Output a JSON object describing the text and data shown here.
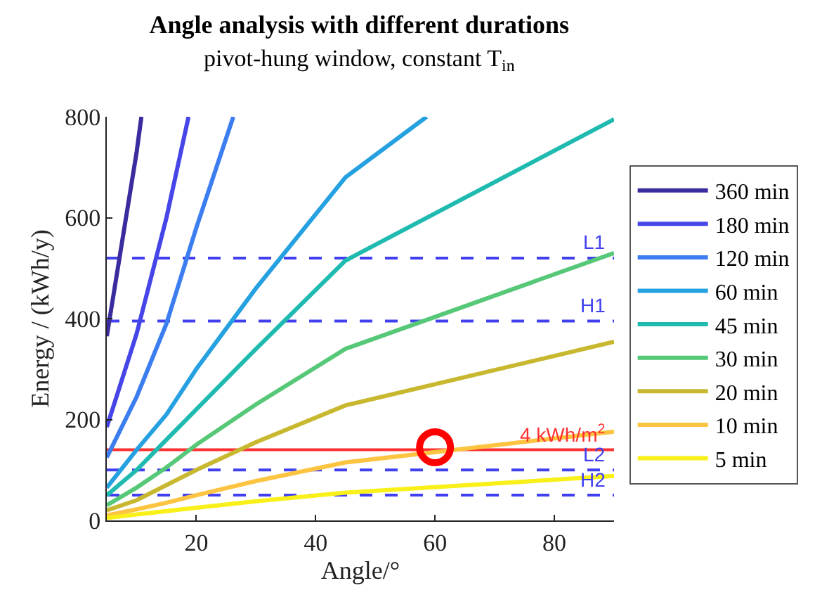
{
  "chart_data": {
    "type": "line",
    "title": "Angle analysis with different durations",
    "subtitle": "pivot-hung window, constant T$_{in}$",
    "xlabel": "Angle/°",
    "ylabel": "Energy / (kWh/y)",
    "xlim": [
      5,
      90
    ],
    "xticks": [
      20,
      40,
      60,
      80
    ],
    "ylim": [
      0,
      800
    ],
    "yticks": [
      0,
      200,
      400,
      600,
      800
    ],
    "grid": false,
    "legend": "right",
    "marker": "none",
    "line_style": "solid",
    "series": [
      {
        "name": "360 min",
        "color": "#3a2c9e",
        "x": [
          5,
          10,
          10.8
        ],
        "values": [
          365,
          730,
          800
        ]
      },
      {
        "name": "180 min",
        "color": "#4646e8",
        "x": [
          5,
          10,
          15,
          18.7
        ],
        "values": [
          185,
          370,
          600,
          800
        ]
      },
      {
        "name": "120 min",
        "color": "#3c7ef0",
        "x": [
          5,
          10,
          15,
          20,
          26.2
        ],
        "values": [
          125,
          245,
          390,
          580,
          800
        ]
      },
      {
        "name": "60 min",
        "color": "#25a0e0",
        "x": [
          5,
          10,
          15,
          20,
          30,
          45,
          58.6
        ],
        "values": [
          65,
          140,
          210,
          300,
          460,
          680,
          800
        ]
      },
      {
        "name": "45 min",
        "color": "#1fbab0",
        "x": [
          5,
          10,
          15,
          20,
          30,
          45,
          90
        ],
        "values": [
          50,
          100,
          160,
          220,
          340,
          515,
          795
        ]
      },
      {
        "name": "30 min",
        "color": "#56c878",
        "x": [
          5,
          10,
          15,
          20,
          30,
          45,
          90
        ],
        "values": [
          30,
          65,
          105,
          150,
          230,
          340,
          530
        ]
      },
      {
        "name": "20 min",
        "color": "#c8b830",
        "x": [
          5,
          10,
          15,
          20,
          30,
          45,
          90
        ],
        "values": [
          20,
          40,
          70,
          100,
          155,
          228,
          354
        ]
      },
      {
        "name": "10 min",
        "color": "#fcc440",
        "x": [
          5,
          10,
          15,
          20,
          30,
          45,
          90
        ],
        "values": [
          10,
          22,
          35,
          50,
          78,
          115,
          176
        ]
      },
      {
        "name": "5 min",
        "color": "#f8f018",
        "x": [
          5,
          10,
          20,
          30,
          45,
          90
        ],
        "values": [
          5,
          12,
          25,
          38,
          55,
          88
        ]
      },
      {
        "type": "scatter",
        "marker": "circle",
        "color": "#ff0000",
        "x": [
          60
        ],
        "values": [
          145
        ]
      }
    ],
    "ref_lines": [
      {
        "axis": "y",
        "value": 520,
        "label": "L1",
        "color": "#4040f0",
        "line_style": "dashed"
      },
      {
        "axis": "y",
        "value": 395,
        "label": "H1",
        "color": "#4040f0",
        "line_style": "dashed"
      },
      {
        "axis": "y",
        "value": 140,
        "label": "4 kWh/m$^{2}$",
        "color": "#ff3030",
        "line_style": "solid"
      },
      {
        "axis": "y",
        "value": 100,
        "label": "L2",
        "color": "#4040f0",
        "line_style": "dashed"
      },
      {
        "axis": "y",
        "value": 50,
        "label": "H2",
        "color": "#4040f0",
        "line_style": "dashed"
      }
    ]
  }
}
